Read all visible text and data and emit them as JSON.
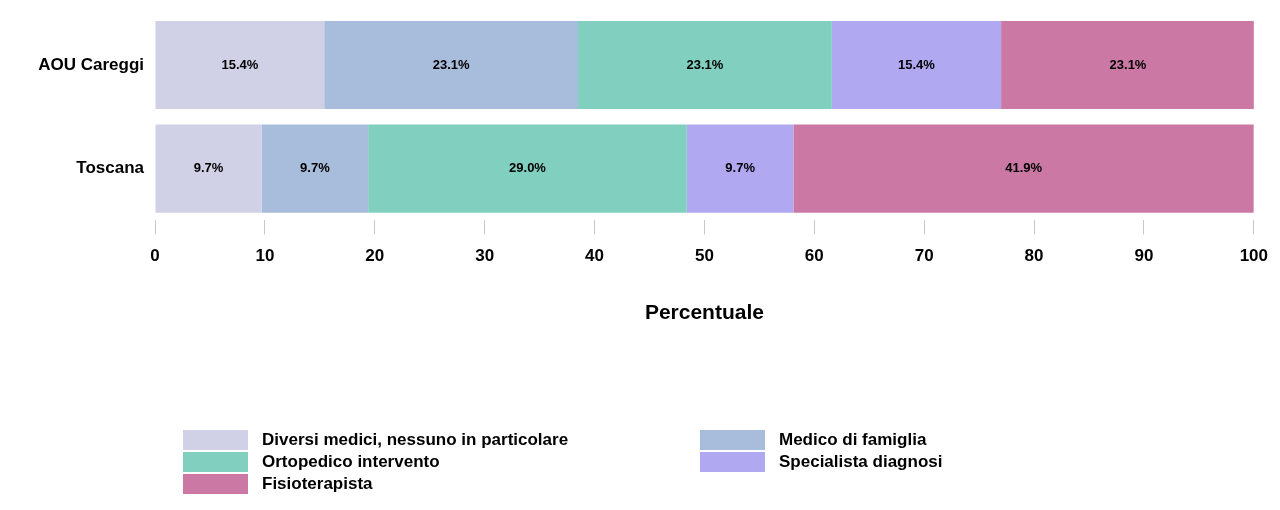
{
  "chart_data": {
    "type": "bar",
    "orientation": "horizontal",
    "stacked": true,
    "xlabel": "Percentuale",
    "categories": [
      "AOU Careggi",
      "Toscana"
    ],
    "series": [
      {
        "name": "Diversi medici, nessuno in particolare",
        "color": "#d0d0e6",
        "values": [
          15.4,
          9.7
        ],
        "value_labels": [
          "15.4%",
          "9.7%"
        ]
      },
      {
        "name": "Medico di famiglia",
        "color": "#a8bcdc",
        "values": [
          23.1,
          9.7
        ],
        "value_labels": [
          "23.1%",
          "9.7%"
        ]
      },
      {
        "name": "Ortopedico intervento",
        "color": "#80cfbf",
        "values": [
          23.1,
          29.0
        ],
        "value_labels": [
          "23.1%",
          "29.0%"
        ]
      },
      {
        "name": "Specialista diagnosi",
        "color": "#b0a8f0",
        "values": [
          15.4,
          9.7
        ],
        "value_labels": [
          "15.4%",
          "9.7%"
        ]
      },
      {
        "name": "Fisioterapista",
        "color": "#cc78a4",
        "values": [
          23.1,
          41.9
        ],
        "value_labels": [
          "23.1%",
          "41.9%"
        ]
      }
    ],
    "xlim": [
      0,
      100
    ],
    "xticks": [
      0,
      10,
      20,
      30,
      40,
      50,
      60,
      70,
      80,
      90,
      100
    ],
    "grid": false,
    "legend": "bottom"
  }
}
